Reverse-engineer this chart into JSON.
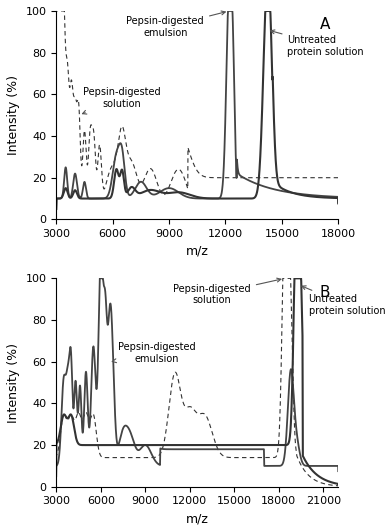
{
  "panel_A": {
    "title": "A",
    "xlim": [
      3000,
      18000
    ],
    "ylim": [
      0,
      100
    ],
    "xlabel": "m/z",
    "ylabel": "Intensity (%)",
    "xticks": [
      3000,
      6000,
      9000,
      12000,
      15000,
      18000
    ]
  },
  "panel_B": {
    "title": "B",
    "xlim": [
      3000,
      22000
    ],
    "ylim": [
      0,
      100
    ],
    "xlabel": "m/z",
    "ylabel": "Intensity (%)",
    "xticks": [
      3000,
      6000,
      9000,
      12000,
      15000,
      18000,
      21000
    ]
  }
}
